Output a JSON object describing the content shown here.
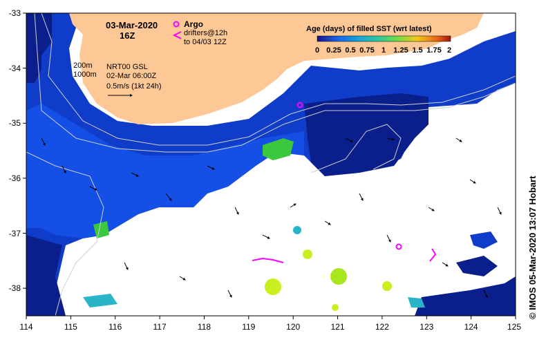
{
  "map": {
    "title_date": "03-Mar-2020",
    "title_time": "16Z",
    "bathy_200": "200m",
    "bathy_1000": "1000m",
    "altimetry": "NRT00 GSL",
    "altimetry_time": "02-Mar 06:00Z",
    "velocity_scale": "0.5m/s (1kt 24h)",
    "argo_label": "Argo",
    "drifters_line1": "drifters@12h",
    "drifters_line2": "to 04/03 12Z",
    "credit": "© IMOS 05-Mar-2020 13:07 Hobart"
  },
  "colorbar": {
    "title": "Age (days) of filled SST (wrt latest)",
    "tick_labels": [
      "0",
      "0.25",
      "0.5",
      "0.75",
      "1",
      "1.25",
      "1.5",
      "1.75",
      "2"
    ],
    "colors": [
      "#1a0f8c",
      "#0f3cc8",
      "#1464e6",
      "#19a0dc",
      "#2bc8a0",
      "#6edc46",
      "#c8e61e",
      "#f5c81e",
      "#e66414",
      "#a01414"
    ]
  },
  "axes": {
    "x_ticks": [
      "114",
      "115",
      "116",
      "117",
      "118",
      "119",
      "120",
      "121",
      "122",
      "123",
      "124",
      "125"
    ],
    "y_ticks": [
      "-33",
      "-34",
      "-35",
      "-36",
      "-37",
      "-38"
    ]
  },
  "colors": {
    "land": "#fdc896",
    "deep_blue": "#0a1e8c",
    "mid_blue": "#0f3cc8",
    "bright_blue": "#1450e6",
    "cyan": "#2ab4c8",
    "green": "#3cc83c",
    "yellow_green": "#c8f01e",
    "magenta": "#ff00ff"
  }
}
